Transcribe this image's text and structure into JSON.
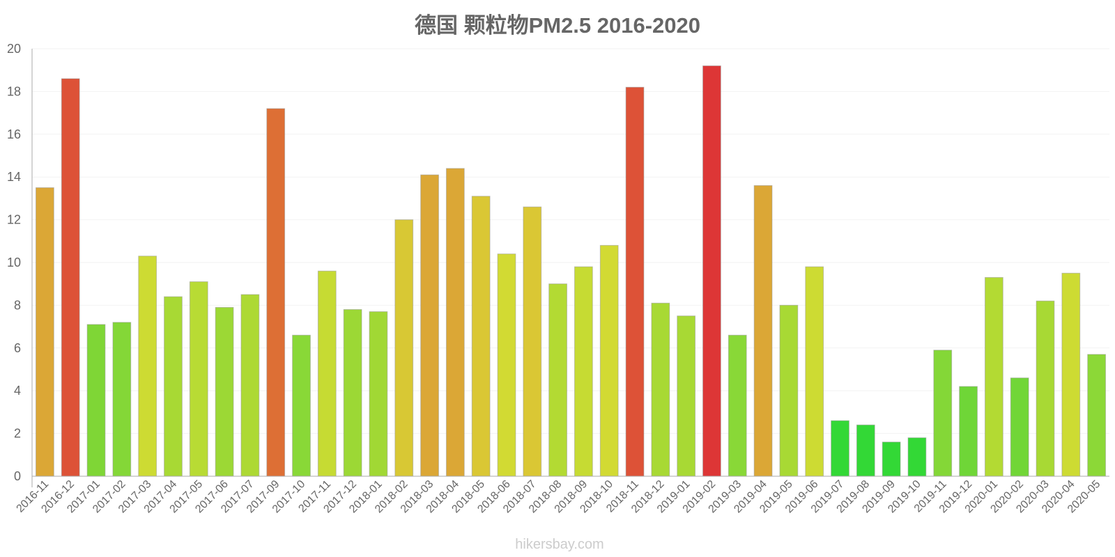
{
  "chart_data": {
    "type": "bar",
    "title": "德国 颗粒物PM2.5 2016-2020",
    "xlabel": "",
    "ylabel": "",
    "ylim": [
      0,
      20
    ],
    "yticks": [
      0,
      2,
      4,
      6,
      8,
      10,
      12,
      14,
      16,
      18,
      20
    ],
    "grid": true,
    "legend": "none",
    "categories": [
      "2016-11",
      "2016-12",
      "2017-01",
      "2017-02",
      "2017-03",
      "2017-04",
      "2017-05",
      "2017-06",
      "2017-07",
      "2017-09",
      "2017-10",
      "2017-11",
      "2017-12",
      "2018-01",
      "2018-02",
      "2018-03",
      "2018-04",
      "2018-05",
      "2018-06",
      "2018-07",
      "2018-08",
      "2018-09",
      "2018-10",
      "2018-11",
      "2018-12",
      "2019-01",
      "2019-02",
      "2019-03",
      "2019-04",
      "2019-05",
      "2019-06",
      "2019-07",
      "2019-08",
      "2019-09",
      "2019-10",
      "2019-11",
      "2019-12",
      "2020-01",
      "2020-02",
      "2020-03",
      "2020-04",
      "2020-05"
    ],
    "values": [
      13.5,
      18.6,
      7.1,
      7.2,
      10.3,
      8.4,
      9.1,
      7.9,
      8.5,
      17.2,
      6.6,
      9.6,
      7.8,
      7.7,
      12.0,
      14.1,
      14.4,
      13.1,
      10.4,
      12.6,
      9.0,
      9.8,
      10.8,
      18.2,
      8.1,
      7.5,
      19.2,
      6.6,
      13.6,
      8.0,
      9.8,
      2.6,
      2.4,
      1.6,
      1.8,
      5.9,
      4.2,
      9.3,
      4.6,
      8.2,
      9.5,
      5.7
    ],
    "colors": [
      "#dba736",
      "#dd5237",
      "#7fd636",
      "#84d737",
      "#cddb33",
      "#a8d934",
      "#b8db34",
      "#9cd835",
      "#add934",
      "#dd6f35",
      "#89d837",
      "#c6db33",
      "#9cd835",
      "#a1d834",
      "#d8c834",
      "#dba736",
      "#dba736",
      "#dac734",
      "#d2da33",
      "#dac734",
      "#b3da33",
      "#c6db33",
      "#d2da33",
      "#dd5237",
      "#a8d934",
      "#a8d934",
      "#dd3636",
      "#89d837",
      "#dba736",
      "#a8d934",
      "#cddb33",
      "#33d836",
      "#33d836",
      "#33d836",
      "#33d836",
      "#84d737",
      "#6fd637",
      "#b3da33",
      "#71d637",
      "#a8d934",
      "#cddb33",
      "#8cd837"
    ],
    "credit": "hikersbay.com"
  }
}
